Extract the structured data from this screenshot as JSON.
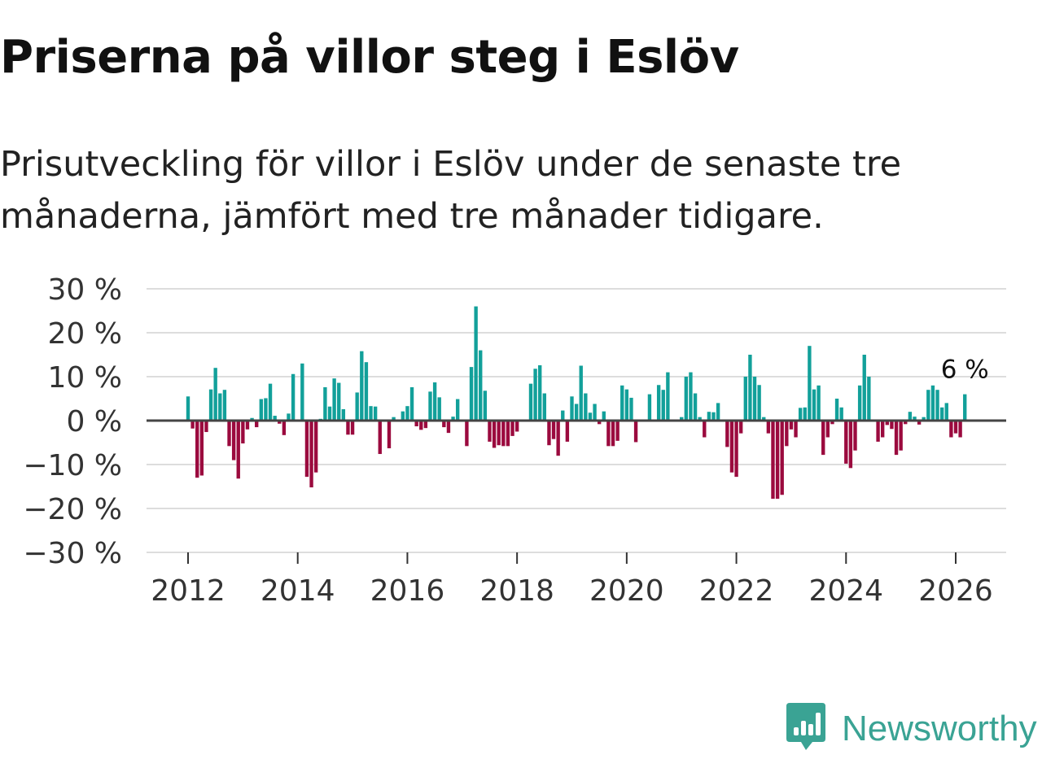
{
  "header": {
    "title": "Priserna på villor steg i Eslöv",
    "subtitle": "Prisutveckling för villor i Eslöv under de senaste tre månaderna, jämfört med tre månader tidigare."
  },
  "brand": {
    "name": "Newsworthy",
    "icon": "newsworthy-logo-icon",
    "color": "#3aa394"
  },
  "colors": {
    "positive": "#12a09a",
    "negative": "#9b0a3e",
    "zero_line": "#444444",
    "grid": "#dddddd"
  },
  "chart_data": {
    "type": "bar",
    "title": "Priserna på villor steg i Eslöv",
    "subtitle": "Prisutveckling för villor i Eslöv under de senaste tre månaderna, jämfört med tre månader tidigare.",
    "xlabel": "",
    "ylabel": "",
    "xlim": [
      2011.25,
      2026.92
    ],
    "ylim": [
      -30,
      30
    ],
    "grid": true,
    "yticks": [
      30,
      20,
      10,
      0,
      -10,
      -20,
      -30
    ],
    "ytick_labels": [
      "30 %",
      "20 %",
      "10 %",
      "0 %",
      "−10 %",
      "−20 %",
      "−30 %"
    ],
    "xticks": [
      2012,
      2014,
      2016,
      2018,
      2020,
      2022,
      2024,
      2026
    ],
    "xtick_labels": [
      "2012",
      "2014",
      "2016",
      "2018",
      "2020",
      "2022",
      "2024",
      "2026"
    ],
    "start": {
      "year": 2012,
      "month": 1
    },
    "unit": "%",
    "values": [
      5.5,
      -1.8,
      -13.0,
      -12.5,
      -2.6,
      7.1,
      12.0,
      6.2,
      7.0,
      -5.8,
      -9.0,
      -13.2,
      -5.2,
      -2.0,
      0.6,
      -1.5,
      4.9,
      5.1,
      8.4,
      1.1,
      -0.7,
      -3.3,
      1.6,
      10.6,
      0.2,
      13.0,
      -12.8,
      -15.2,
      -11.8,
      0.4,
      7.6,
      3.2,
      9.6,
      8.6,
      2.6,
      -3.2,
      -3.2,
      6.4,
      15.8,
      13.3,
      3.3,
      3.2,
      -7.6,
      0.2,
      -6.3,
      0.8,
      0.2,
      2.1,
      3.3,
      7.6,
      -1.3,
      -2.1,
      -1.7,
      6.6,
      8.7,
      5.3,
      -1.5,
      -2.8,
      0.9,
      4.9,
      0.0,
      -5.8,
      12.2,
      26.0,
      16.0,
      6.8,
      -4.8,
      -6.2,
      -5.6,
      -5.8,
      -5.8,
      -3.5,
      -2.5,
      0.1,
      0.2,
      8.4,
      11.8,
      12.6,
      6.2,
      -5.6,
      -4.2,
      -8.0,
      2.3,
      -4.8,
      5.5,
      3.8,
      12.5,
      6.2,
      1.8,
      3.8,
      -0.8,
      2.1,
      -5.8,
      -5.8,
      -4.6,
      8.0,
      7.1,
      5.2,
      -4.9,
      0.0,
      0.0,
      6.0,
      0.0,
      8.1,
      7.0,
      11.0,
      0.0,
      0.0,
      0.8,
      10.0,
      11.0,
      6.2,
      0.8,
      -3.8,
      2.0,
      1.9,
      4.0,
      0.1,
      -6.0,
      -11.8,
      -12.8,
      -2.9,
      10.0,
      15.0,
      10.0,
      8.1,
      0.8,
      -2.9,
      -17.8,
      -17.8,
      -16.9,
      -5.8,
      -2.0,
      -3.8,
      2.9,
      3.0,
      17.0,
      7.1,
      8.0,
      -7.8,
      -3.8,
      -0.8,
      5.0,
      3.0,
      -9.8,
      -10.8,
      -6.8,
      8.0,
      15.0,
      10.0,
      0.0,
      -4.8,
      -3.8,
      -1.0,
      -1.9,
      -7.8,
      -6.8,
      -0.8,
      2.0,
      0.9,
      -0.9,
      0.8,
      7.0,
      8.0,
      7.0,
      3.0,
      4.0,
      -3.8,
      -2.9,
      -3.8,
      6.0
    ],
    "annotations": [
      {
        "label": "6 %",
        "value": 6,
        "year": 2026,
        "month": 3
      }
    ]
  }
}
